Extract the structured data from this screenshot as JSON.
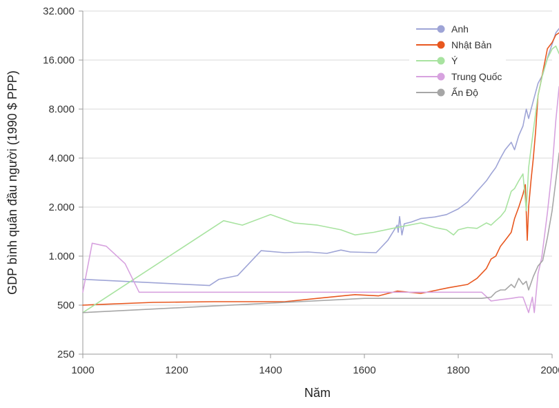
{
  "chart_data": {
    "type": "line",
    "xlabel": "Năm",
    "ylabel": "GDP bình quân đầu người (1990 $ PPP)",
    "xlim": [
      1000,
      2000
    ],
    "ylim": [
      250,
      32000
    ],
    "y_scale": "log2",
    "grid": "horizontal",
    "legend_position": "top-right",
    "x_ticks": [
      1000,
      1200,
      1400,
      1600,
      1800,
      2000
    ],
    "x_tick_labels": [
      "1000",
      "1200",
      "1400",
      "1600",
      "1800",
      "2000"
    ],
    "y_ticks": [
      250,
      500,
      1000,
      2000,
      4000,
      8000,
      16000,
      32000
    ],
    "y_tick_labels": [
      "250",
      "500",
      "1.000",
      "2.000",
      "4.000",
      "8.000",
      "16.000",
      "32.000"
    ],
    "series": [
      {
        "name": "Anh",
        "color": "#9ea4d6",
        "points": [
          [
            1000,
            720
          ],
          [
            1270,
            660
          ],
          [
            1290,
            720
          ],
          [
            1330,
            760
          ],
          [
            1380,
            1080
          ],
          [
            1430,
            1050
          ],
          [
            1480,
            1060
          ],
          [
            1520,
            1040
          ],
          [
            1550,
            1090
          ],
          [
            1570,
            1060
          ],
          [
            1625,
            1050
          ],
          [
            1650,
            1250
          ],
          [
            1670,
            1550
          ],
          [
            1672,
            1400
          ],
          [
            1675,
            1750
          ],
          [
            1680,
            1350
          ],
          [
            1685,
            1580
          ],
          [
            1700,
            1620
          ],
          [
            1720,
            1700
          ],
          [
            1750,
            1740
          ],
          [
            1775,
            1800
          ],
          [
            1800,
            1950
          ],
          [
            1820,
            2150
          ],
          [
            1840,
            2500
          ],
          [
            1860,
            2900
          ],
          [
            1870,
            3200
          ],
          [
            1880,
            3500
          ],
          [
            1890,
            4000
          ],
          [
            1900,
            4500
          ],
          [
            1913,
            5000
          ],
          [
            1920,
            4500
          ],
          [
            1929,
            5500
          ],
          [
            1938,
            6300
          ],
          [
            1945,
            8000
          ],
          [
            1950,
            7000
          ],
          [
            1960,
            9000
          ],
          [
            1970,
            11500
          ],
          [
            1980,
            13000
          ],
          [
            1990,
            16500
          ],
          [
            2000,
            20000
          ],
          [
            2008,
            23500
          ],
          [
            2015,
            25000
          ]
        ]
      },
      {
        "name": "Nhật Bản",
        "color": "#e8571f",
        "points": [
          [
            1000,
            500
          ],
          [
            1150,
            520
          ],
          [
            1280,
            525
          ],
          [
            1430,
            525
          ],
          [
            1500,
            550
          ],
          [
            1580,
            580
          ],
          [
            1630,
            570
          ],
          [
            1670,
            610
          ],
          [
            1720,
            590
          ],
          [
            1780,
            640
          ],
          [
            1820,
            670
          ],
          [
            1840,
            730
          ],
          [
            1860,
            840
          ],
          [
            1870,
            960
          ],
          [
            1880,
            1000
          ],
          [
            1890,
            1150
          ],
          [
            1900,
            1250
          ],
          [
            1913,
            1400
          ],
          [
            1920,
            1700
          ],
          [
            1929,
            2000
          ],
          [
            1938,
            2400
          ],
          [
            1943,
            2750
          ],
          [
            1945,
            1850
          ],
          [
            1947,
            1250
          ],
          [
            1950,
            2000
          ],
          [
            1955,
            2900
          ],
          [
            1960,
            4000
          ],
          [
            1965,
            5900
          ],
          [
            1970,
            9700
          ],
          [
            1975,
            11300
          ],
          [
            1980,
            13400
          ],
          [
            1990,
            18800
          ],
          [
            2000,
            20500
          ],
          [
            2008,
            22800
          ],
          [
            2015,
            23500
          ]
        ]
      },
      {
        "name": "Ý",
        "color": "#a8e3a0",
        "points": [
          [
            1000,
            450
          ],
          [
            1300,
            1650
          ],
          [
            1340,
            1550
          ],
          [
            1400,
            1800
          ],
          [
            1450,
            1600
          ],
          [
            1500,
            1550
          ],
          [
            1550,
            1450
          ],
          [
            1580,
            1350
          ],
          [
            1620,
            1400
          ],
          [
            1660,
            1480
          ],
          [
            1720,
            1600
          ],
          [
            1750,
            1500
          ],
          [
            1775,
            1450
          ],
          [
            1790,
            1350
          ],
          [
            1800,
            1450
          ],
          [
            1820,
            1500
          ],
          [
            1840,
            1480
          ],
          [
            1860,
            1600
          ],
          [
            1870,
            1550
          ],
          [
            1880,
            1650
          ],
          [
            1890,
            1750
          ],
          [
            1900,
            1900
          ],
          [
            1913,
            2500
          ],
          [
            1920,
            2600
          ],
          [
            1929,
            2900
          ],
          [
            1938,
            3200
          ],
          [
            1945,
            1900
          ],
          [
            1950,
            3500
          ],
          [
            1960,
            5900
          ],
          [
            1970,
            9700
          ],
          [
            1980,
            13100
          ],
          [
            1990,
            16300
          ],
          [
            2000,
            18700
          ],
          [
            2008,
            19500
          ],
          [
            2015,
            17500
          ]
        ]
      },
      {
        "name": "Trung Quốc",
        "color": "#d7a2df",
        "points": [
          [
            1000,
            600
          ],
          [
            1020,
            1200
          ],
          [
            1050,
            1150
          ],
          [
            1090,
            900
          ],
          [
            1120,
            600
          ],
          [
            1300,
            600
          ],
          [
            1400,
            600
          ],
          [
            1450,
            600
          ],
          [
            1500,
            600
          ],
          [
            1550,
            600
          ],
          [
            1600,
            600
          ],
          [
            1650,
            600
          ],
          [
            1700,
            600
          ],
          [
            1750,
            600
          ],
          [
            1800,
            600
          ],
          [
            1820,
            600
          ],
          [
            1850,
            600
          ],
          [
            1870,
            530
          ],
          [
            1890,
            540
          ],
          [
            1913,
            550
          ],
          [
            1929,
            560
          ],
          [
            1938,
            560
          ],
          [
            1950,
            450
          ],
          [
            1958,
            560
          ],
          [
            1962,
            450
          ],
          [
            1970,
            780
          ],
          [
            1978,
            980
          ],
          [
            1990,
            1850
          ],
          [
            2000,
            3400
          ],
          [
            2008,
            6800
          ],
          [
            2015,
            11000
          ]
        ]
      },
      {
        "name": "Ấn Độ",
        "color": "#a6a6a6",
        "points": [
          [
            1000,
            450
          ],
          [
            1600,
            550
          ],
          [
            1650,
            550
          ],
          [
            1700,
            550
          ],
          [
            1750,
            550
          ],
          [
            1800,
            550
          ],
          [
            1820,
            550
          ],
          [
            1850,
            550
          ],
          [
            1870,
            560
          ],
          [
            1880,
            600
          ],
          [
            1890,
            620
          ],
          [
            1900,
            620
          ],
          [
            1913,
            670
          ],
          [
            1920,
            640
          ],
          [
            1929,
            730
          ],
          [
            1938,
            670
          ],
          [
            1945,
            700
          ],
          [
            1950,
            620
          ],
          [
            1960,
            750
          ],
          [
            1970,
            870
          ],
          [
            1980,
            940
          ],
          [
            1990,
            1300
          ],
          [
            2000,
            1900
          ],
          [
            2008,
            2900
          ],
          [
            2015,
            4300
          ]
        ]
      }
    ]
  }
}
